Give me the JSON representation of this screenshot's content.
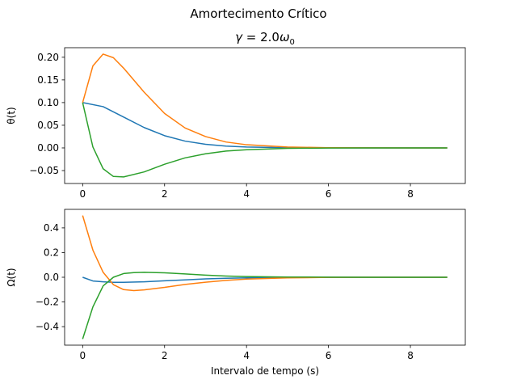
{
  "figure": {
    "suptitle": "Amortecimento Crítico"
  },
  "chart_data": [
    {
      "type": "line",
      "title_prefix": "γ = ",
      "title_value": "2.0",
      "title_symbol": "ω",
      "title_subscript": "0",
      "xlabel": "",
      "ylabel": "θ(t)",
      "xlim": [
        -0.44,
        9.34
      ],
      "ylim": [
        -0.0785,
        0.2211
      ],
      "xticks": [
        0,
        2,
        4,
        6,
        8
      ],
      "xtick_labels": [
        "0",
        "2",
        "4",
        "6",
        "8"
      ],
      "yticks": [
        -0.05,
        0.0,
        0.05,
        0.1,
        0.15,
        0.2
      ],
      "ytick_labels": [
        "−0.05",
        "0.00",
        "0.05",
        "0.10",
        "0.15",
        "0.20"
      ],
      "grid": false,
      "series": [
        {
          "color": "#1f77b4",
          "x": [
            0,
            0.5,
            1,
            1.5,
            2,
            2.5,
            3,
            3.5,
            4,
            5,
            6,
            7,
            8,
            8.9
          ],
          "y": [
            0.1,
            0.091,
            0.068,
            0.045,
            0.027,
            0.015,
            0.008,
            0.004,
            0.002,
            0.0004,
            0.0001,
            0.0,
            0.0,
            0.0
          ]
        },
        {
          "color": "#ff7f0e",
          "x": [
            0,
            0.25,
            0.5,
            0.75,
            1,
            1.5,
            2,
            2.5,
            3,
            3.5,
            4,
            5,
            6,
            7,
            8,
            8.9
          ],
          "y": [
            0.1,
            0.181,
            0.207,
            0.199,
            0.176,
            0.123,
            0.076,
            0.044,
            0.025,
            0.013,
            0.007,
            0.002,
            0.0004,
            0.0001,
            0.0,
            0.0
          ]
        },
        {
          "color": "#2ca02c",
          "x": [
            0,
            0.25,
            0.5,
            0.75,
            1,
            1.5,
            2,
            2.5,
            3,
            3.5,
            4,
            5,
            6,
            7,
            8,
            8.9
          ],
          "y": [
            0.1,
            0.002,
            -0.046,
            -0.063,
            -0.064,
            -0.053,
            -0.036,
            -0.022,
            -0.013,
            -0.007,
            -0.004,
            -0.001,
            -0.0002,
            0.0,
            0.0,
            0.0
          ]
        }
      ]
    },
    {
      "type": "line",
      "title": "",
      "xlabel": "Intervalo de tempo (s)",
      "ylabel": "Ω(t)",
      "xlim": [
        -0.44,
        9.34
      ],
      "ylim": [
        -0.55,
        0.55
      ],
      "xticks": [
        0,
        2,
        4,
        6,
        8
      ],
      "xtick_labels": [
        "0",
        "2",
        "4",
        "6",
        "8"
      ],
      "yticks": [
        -0.4,
        -0.2,
        0.0,
        0.2,
        0.4
      ],
      "ytick_labels": [
        "−0.4",
        "−0.2",
        "0.0",
        "0.2",
        "0.4"
      ],
      "grid": false,
      "series": [
        {
          "color": "#1f77b4",
          "x": [
            0,
            0.25,
            0.5,
            0.75,
            1,
            1.5,
            2,
            2.5,
            3,
            3.5,
            4,
            5,
            6,
            7,
            8,
            8.9
          ],
          "y": [
            0.0,
            -0.03,
            -0.037,
            -0.041,
            -0.041,
            -0.037,
            -0.029,
            -0.021,
            -0.013,
            -0.008,
            -0.005,
            -0.002,
            -0.0005,
            -0.0001,
            0.0,
            0.0
          ]
        },
        {
          "color": "#ff7f0e",
          "x": [
            0,
            0.25,
            0.5,
            0.75,
            1,
            1.25,
            1.5,
            2,
            2.5,
            3,
            3.5,
            4,
            5,
            6,
            7,
            8,
            8.9
          ],
          "y": [
            0.5,
            0.22,
            0.04,
            -0.06,
            -0.1,
            -0.108,
            -0.102,
            -0.082,
            -0.058,
            -0.04,
            -0.025,
            -0.015,
            -0.005,
            -0.001,
            0.0,
            0.0,
            0.0
          ]
        },
        {
          "color": "#2ca02c",
          "x": [
            0,
            0.25,
            0.5,
            0.75,
            1,
            1.25,
            1.5,
            2,
            2.5,
            3,
            3.5,
            4,
            5,
            6,
            7,
            8,
            8.9
          ],
          "y": [
            -0.5,
            -0.24,
            -0.07,
            0.0,
            0.03,
            0.038,
            0.04,
            0.036,
            0.027,
            0.017,
            0.01,
            0.006,
            0.002,
            0.0005,
            0.0,
            0.0,
            0.0
          ]
        }
      ]
    }
  ]
}
